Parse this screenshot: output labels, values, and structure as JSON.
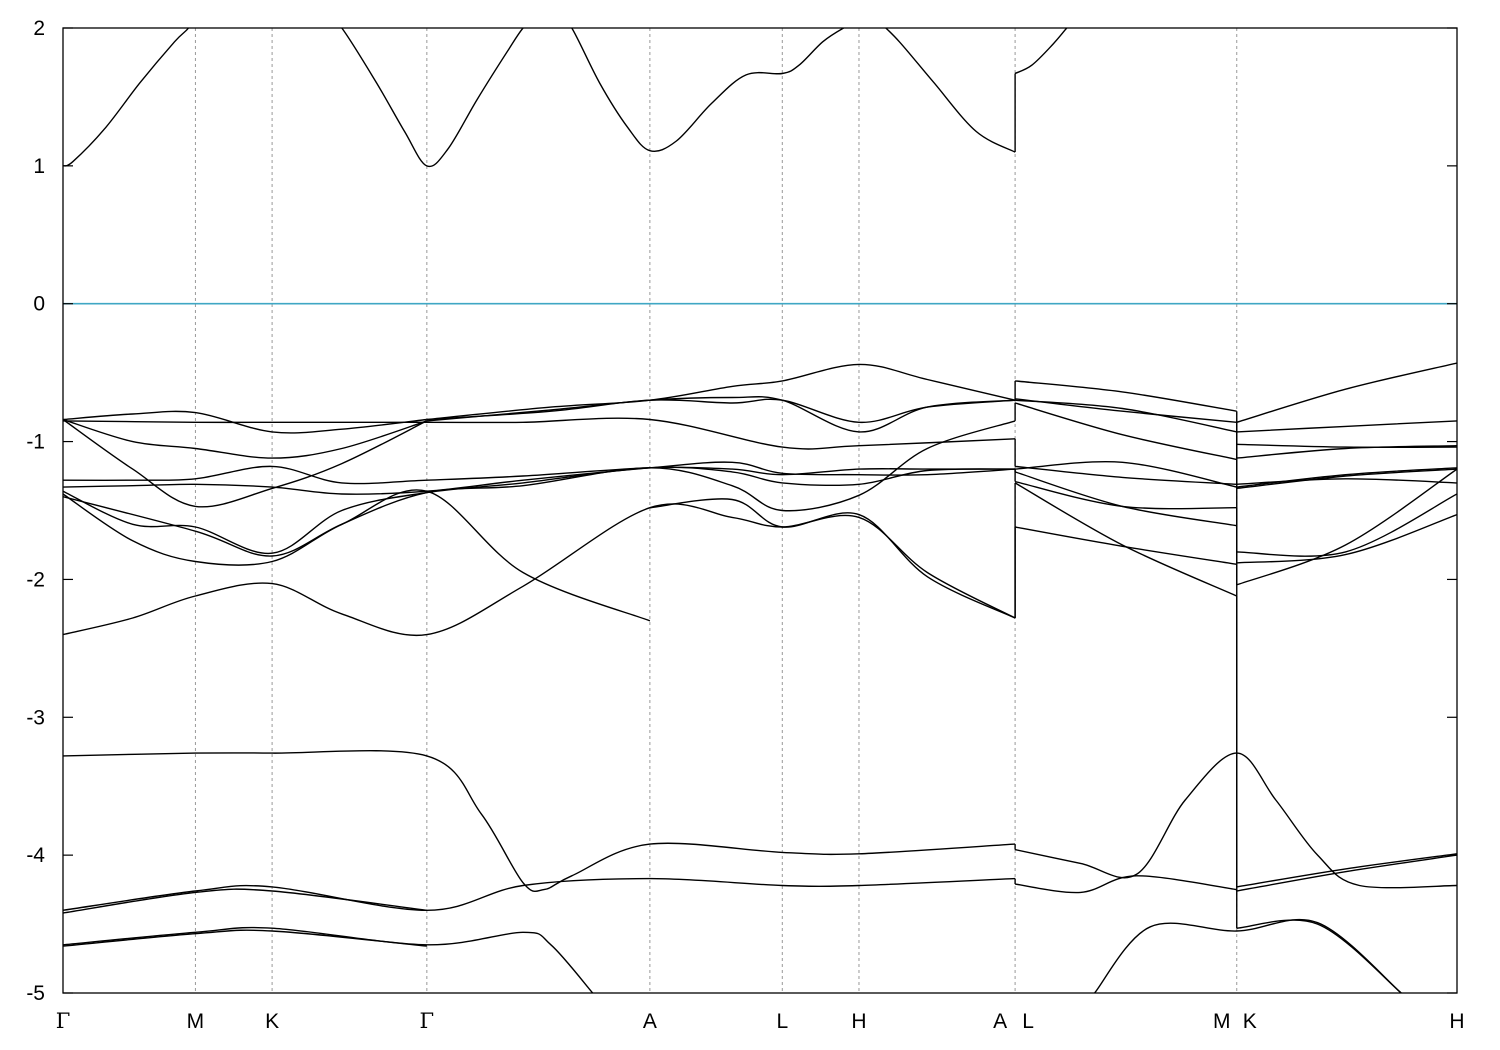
{
  "chart_data": {
    "type": "line",
    "title": "",
    "xlabel": "",
    "ylabel": "",
    "ylim": [
      -5,
      2
    ],
    "y_ticks": [
      -5,
      -4,
      -3,
      -2,
      -1,
      0,
      1,
      2
    ],
    "grid": "vertical dashed lines at high-symmetry points",
    "fermi_level": 0,
    "colors": {
      "bands": "#000000",
      "fermi_level": "#3fa7c4",
      "vlines": "#999999"
    },
    "kpoints": [
      {
        "label": "Γ",
        "x": 0.0
      },
      {
        "label": "M",
        "x": 0.095
      },
      {
        "label": "K",
        "x": 0.15
      },
      {
        "label": "Γ",
        "x": 0.261
      },
      {
        "label": "A",
        "x": 0.421
      },
      {
        "label": "L",
        "x": 0.516
      },
      {
        "label": "H",
        "x": 0.571
      },
      {
        "label": "A",
        "x": 0.683
      },
      {
        "label": "L",
        "x": 0.683
      },
      {
        "label": "M",
        "x": 0.842
      },
      {
        "label": "K",
        "x": 0.842
      },
      {
        "label": "H",
        "x": 1.0
      }
    ],
    "segment_breaks": [
      0.683,
      0.842
    ],
    "series": [
      {
        "x": [
          0.0,
          0.007,
          0.03,
          0.055,
          0.08,
          0.09,
          0.095
        ],
        "y": [
          1.0,
          1.03,
          1.27,
          1.6,
          1.9,
          2.0,
          2.1
        ]
      },
      {
        "x": [
          0.188,
          0.2,
          0.225,
          0.245,
          0.261,
          0.276,
          0.297,
          0.32,
          0.33,
          0.34
        ],
        "y": [
          2.1,
          2.0,
          1.6,
          1.25,
          1.0,
          1.12,
          1.48,
          1.85,
          2.0,
          2.1
        ]
      },
      {
        "x": [
          0.355,
          0.365,
          0.385,
          0.405,
          0.421,
          0.44,
          0.465,
          0.49,
          0.516,
          0.528,
          0.545,
          0.56,
          0.571,
          0.585
        ],
        "y": [
          2.1,
          2.0,
          1.6,
          1.28,
          1.11,
          1.18,
          1.45,
          1.66,
          1.67,
          1.73,
          1.9,
          2.0,
          2.05,
          2.05
        ]
      },
      {
        "x": [
          0.585,
          0.6,
          0.625,
          0.655,
          0.683
        ],
        "y": [
          2.05,
          1.9,
          1.6,
          1.25,
          1.1
        ]
      },
      {
        "x": [
          0.683,
          0.695,
          0.71,
          0.72
        ],
        "y": [
          1.67,
          1.73,
          1.88,
          2.0
        ]
      },
      {
        "x": [
          0.0,
          0.095,
          0.15,
          0.261,
          0.33,
          0.421,
          0.516,
          0.571,
          0.683
        ],
        "y": [
          -0.85,
          -0.86,
          -0.86,
          -0.86,
          -0.86,
          -0.84,
          -1.04,
          -1.03,
          -0.98
        ]
      },
      {
        "x": [
          0.683,
          0.76,
          0.842
        ],
        "y": [
          -0.69,
          -0.78,
          -0.86
        ]
      },
      {
        "x": [
          0.842,
          0.92,
          1.0
        ],
        "y": [
          -1.02,
          -1.04,
          -1.04
        ]
      },
      {
        "x": [
          0.0,
          0.05,
          0.095,
          0.15,
          0.2,
          0.261
        ],
        "y": [
          -0.84,
          -0.8,
          -0.79,
          -0.93,
          -0.91,
          -0.84
        ]
      },
      {
        "x": [
          0.261,
          0.35,
          0.421,
          0.48,
          0.516,
          0.571,
          0.62,
          0.683
        ],
        "y": [
          -0.84,
          -0.75,
          -0.7,
          -0.6,
          -0.56,
          -0.44,
          -0.55,
          -0.7
        ]
      },
      {
        "x": [
          0.683,
          0.76,
          0.842
        ],
        "y": [
          -0.56,
          -0.64,
          -0.78
        ]
      },
      {
        "x": [
          0.842,
          0.92,
          1.0
        ],
        "y": [
          -0.86,
          -0.62,
          -0.43
        ]
      },
      {
        "x": [
          0.0,
          0.05,
          0.095,
          0.15,
          0.2,
          0.261
        ],
        "y": [
          -0.84,
          -1.0,
          -1.05,
          -1.12,
          -1.05,
          -0.85
        ]
      },
      {
        "x": [
          0.261,
          0.35,
          0.421,
          0.48,
          0.516,
          0.571,
          0.62,
          0.683
        ],
        "y": [
          -0.84,
          -0.78,
          -0.7,
          -0.72,
          -0.7,
          -0.86,
          -0.75,
          -0.7
        ]
      },
      {
        "x": [
          0.683,
          0.76,
          0.842
        ],
        "y": [
          -0.7,
          -0.76,
          -0.93
        ]
      },
      {
        "x": [
          0.842,
          0.92,
          1.0
        ],
        "y": [
          -0.93,
          -0.89,
          -0.85
        ]
      },
      {
        "x": [
          0.0,
          0.05,
          0.095,
          0.15,
          0.2,
          0.261
        ],
        "y": [
          -0.84,
          -1.2,
          -1.47,
          -1.34,
          -1.16,
          -0.85
        ]
      },
      {
        "x": [
          0.261,
          0.35,
          0.421,
          0.48,
          0.516,
          0.571,
          0.62,
          0.683
        ],
        "y": [
          -0.85,
          -0.77,
          -0.7,
          -0.68,
          -0.7,
          -0.93,
          -0.75,
          -0.7
        ]
      },
      {
        "x": [
          0.683,
          0.76,
          0.842
        ],
        "y": [
          -0.72,
          -0.95,
          -1.13
        ]
      },
      {
        "x": [
          0.842,
          0.92,
          1.0
        ],
        "y": [
          -1.12,
          -1.05,
          -1.03
        ]
      },
      {
        "x": [
          0.0,
          0.05,
          0.095,
          0.15,
          0.2,
          0.261,
          0.33,
          0.421,
          0.48,
          0.516,
          0.571,
          0.62,
          0.683
        ],
        "y": [
          -1.28,
          -1.28,
          -1.27,
          -1.18,
          -1.3,
          -1.28,
          -1.25,
          -1.19,
          -1.2,
          -1.24,
          -1.2,
          -1.2,
          -1.2
        ]
      },
      {
        "x": [
          0.683,
          0.76,
          0.842
        ],
        "y": [
          -1.18,
          -1.26,
          -1.31
        ]
      },
      {
        "x": [
          0.842,
          0.92,
          1.0
        ],
        "y": [
          -1.31,
          -1.27,
          -1.3
        ]
      },
      {
        "x": [
          0.0,
          0.05,
          0.095,
          0.15,
          0.2,
          0.261,
          0.33,
          0.421,
          0.48,
          0.516,
          0.571,
          0.62,
          0.683
        ],
        "y": [
          -1.33,
          -1.32,
          -1.31,
          -1.33,
          -1.38,
          -1.36,
          -1.28,
          -1.19,
          -1.15,
          -1.23,
          -1.24,
          -1.24,
          -1.2
        ]
      },
      {
        "x": [
          0.683,
          0.76,
          0.842
        ],
        "y": [
          -1.2,
          -1.15,
          -1.33
        ]
      },
      {
        "x": [
          0.842,
          0.92,
          1.0
        ],
        "y": [
          -1.33,
          -1.24,
          -1.19
        ]
      },
      {
        "x": [
          0.0,
          0.05,
          0.095,
          0.15,
          0.2,
          0.261,
          0.33,
          0.421,
          0.48,
          0.516,
          0.571,
          0.62,
          0.683
        ],
        "y": [
          -1.36,
          -1.6,
          -1.62,
          -1.81,
          -1.5,
          -1.37,
          -1.3,
          -1.19,
          -1.22,
          -1.3,
          -1.31,
          -1.21,
          -1.2
        ]
      },
      {
        "x": [
          0.683,
          0.76,
          0.842
        ],
        "y": [
          -1.29,
          -1.47,
          -1.48
        ]
      },
      {
        "x": [
          0.842,
          0.92,
          1.0
        ],
        "y": [
          -1.34,
          -1.25,
          -1.2
        ]
      },
      {
        "x": [
          0.0,
          0.05,
          0.095,
          0.15,
          0.2,
          0.261,
          0.33,
          0.421,
          0.48,
          0.516,
          0.571,
          0.62,
          0.683
        ],
        "y": [
          -1.38,
          -1.72,
          -1.87,
          -1.87,
          -1.6,
          -1.37,
          -1.32,
          -1.19,
          -1.32,
          -1.5,
          -1.39,
          -1.05,
          -0.85
        ]
      },
      {
        "x": [
          0.683,
          0.76,
          0.842
        ],
        "y": [
          -1.22,
          -1.47,
          -1.61
        ]
      },
      {
        "x": [
          0.842,
          0.92,
          1.0
        ],
        "y": [
          -1.8,
          -1.8,
          -1.38
        ]
      },
      {
        "x": [
          0.0,
          0.095,
          0.15,
          0.2,
          0.261,
          0.33,
          0.421
        ],
        "y": [
          -1.4,
          -1.65,
          -1.83,
          -1.6,
          -1.36,
          -1.95,
          -2.3
        ]
      },
      {
        "x": [
          0.421,
          0.48,
          0.516,
          0.571,
          0.62,
          0.683
        ],
        "y": [
          -1.48,
          -1.42,
          -1.62,
          -1.53,
          -1.98,
          -2.28
        ]
      },
      {
        "x": [
          0.683,
          0.76,
          0.842
        ],
        "y": [
          -1.62,
          -1.76,
          -1.89
        ]
      },
      {
        "x": [
          0.842,
          0.92,
          1.0
        ],
        "y": [
          -1.88,
          -1.82,
          -1.53
        ]
      },
      {
        "x": [
          0.0,
          0.05,
          0.095,
          0.15,
          0.2,
          0.261,
          0.33,
          0.421,
          0.48,
          0.516,
          0.571,
          0.62,
          0.683
        ],
        "y": [
          -2.4,
          -2.28,
          -2.12,
          -2.03,
          -2.25,
          -2.4,
          -2.05,
          -1.48,
          -1.55,
          -1.62,
          -1.55,
          -1.95,
          -2.28
        ]
      },
      {
        "x": [
          0.683,
          0.76,
          0.842
        ],
        "y": [
          -1.3,
          -1.75,
          -2.12
        ]
      },
      {
        "x": [
          0.842,
          0.92,
          1.0
        ],
        "y": [
          -2.04,
          -1.75,
          -1.2
        ]
      },
      {
        "x": [
          0.0,
          0.095,
          0.15,
          0.261,
          0.3,
          0.33,
          0.345,
          0.365,
          0.421,
          0.516,
          0.571,
          0.683
        ],
        "y": [
          -3.28,
          -3.26,
          -3.26,
          -3.28,
          -3.7,
          -4.2,
          -4.25,
          -4.15,
          -3.92,
          -3.98,
          -3.99,
          -3.92
        ]
      },
      {
        "x": [
          0.683,
          0.73,
          0.77,
          0.805,
          0.842,
          0.87,
          0.9,
          0.93,
          1.0
        ],
        "y": [
          -3.96,
          -4.06,
          -4.14,
          -3.6,
          -3.26,
          -3.6,
          -4.0,
          -4.22,
          -4.22
        ]
      },
      {
        "x": [
          0.0,
          0.095,
          0.15,
          0.261,
          0.33,
          0.421,
          0.516,
          0.571,
          0.683
        ],
        "y": [
          -4.4,
          -4.26,
          -4.23,
          -4.4,
          -4.22,
          -4.17,
          -4.22,
          -4.22,
          -4.17
        ]
      },
      {
        "x": [
          0.683,
          0.73,
          0.77,
          0.842
        ],
        "y": [
          -4.21,
          -4.27,
          -4.15,
          -4.25
        ]
      },
      {
        "x": [
          0.842,
          0.92,
          1.0
        ],
        "y": [
          -4.23,
          -4.1,
          -3.99
        ]
      },
      {
        "x": [
          0.0,
          0.095,
          0.15,
          0.261
        ],
        "y": [
          -4.42,
          -4.27,
          -4.26,
          -4.4
        ]
      },
      {
        "x": [
          0.842,
          0.92,
          1.0
        ],
        "y": [
          -4.26,
          -4.12,
          -4.0
        ]
      },
      {
        "x": [
          0.0,
          0.095,
          0.15,
          0.261,
          0.33,
          0.35,
          0.38
        ],
        "y": [
          -4.65,
          -4.56,
          -4.53,
          -4.65,
          -4.56,
          -4.65,
          -5.0
        ]
      },
      {
        "x": [
          0.74,
          0.78,
          0.842,
          0.9,
          0.96
        ],
        "y": [
          -5.0,
          -4.52,
          -4.55,
          -4.49,
          -5.0
        ]
      },
      {
        "x": [
          0.0,
          0.095,
          0.15,
          0.261
        ],
        "y": [
          -4.66,
          -4.57,
          -4.55,
          -4.66
        ]
      },
      {
        "x": [
          0.842,
          0.9,
          0.96
        ],
        "y": [
          -4.53,
          -4.5,
          -5.0
        ]
      }
    ]
  }
}
